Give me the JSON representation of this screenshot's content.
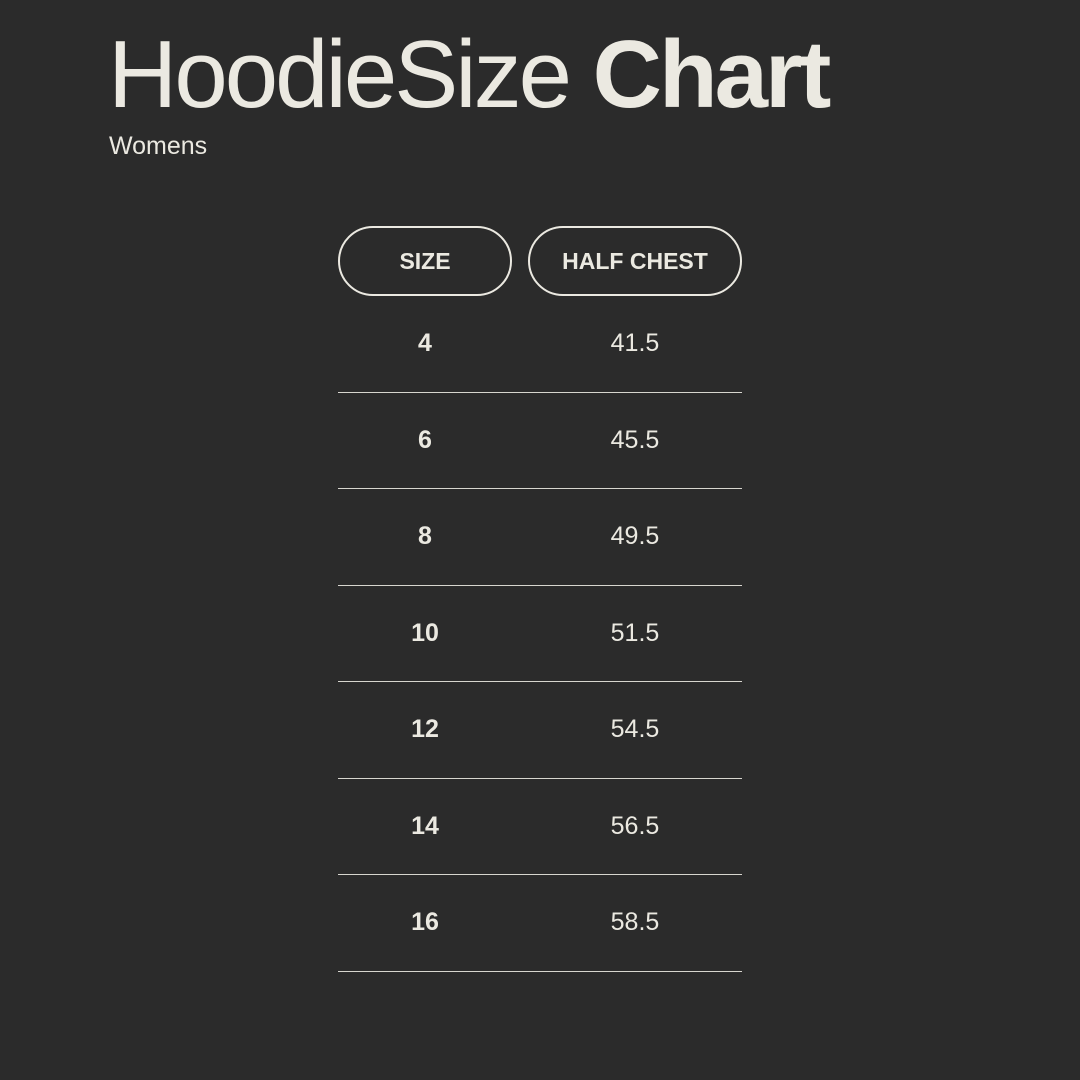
{
  "header": {
    "title_light": "HoodieSize",
    "title_bold": "Chart",
    "subtitle": "Womens"
  },
  "table": {
    "columns": [
      "SIZE",
      "HALF CHEST"
    ],
    "rows": [
      {
        "size": "4",
        "half_chest": "41.5"
      },
      {
        "size": "6",
        "half_chest": "45.5"
      },
      {
        "size": "8",
        "half_chest": "49.5"
      },
      {
        "size": "10",
        "half_chest": "51.5"
      },
      {
        "size": "12",
        "half_chest": "54.5"
      },
      {
        "size": "14",
        "half_chest": "56.5"
      },
      {
        "size": "16",
        "half_chest": "58.5"
      }
    ]
  },
  "colors": {
    "background": "#2b2b2b",
    "text": "#ebe9e1"
  }
}
